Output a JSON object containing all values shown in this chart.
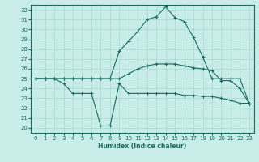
{
  "xlabel": "Humidex (Indice chaleur)",
  "ylabel": "",
  "xlim": [
    -0.5,
    23.5
  ],
  "ylim": [
    19.5,
    32.5
  ],
  "yticks": [
    20,
    21,
    22,
    23,
    24,
    25,
    26,
    27,
    28,
    29,
    30,
    31,
    32
  ],
  "xticks": [
    0,
    1,
    2,
    3,
    4,
    5,
    6,
    7,
    8,
    9,
    10,
    11,
    12,
    13,
    14,
    15,
    16,
    17,
    18,
    19,
    20,
    21,
    22,
    23
  ],
  "background_color": "#c8ece8",
  "grid_color": "#a8d8cc",
  "line_color": "#1a6b60",
  "curves": [
    {
      "x": [
        0,
        1,
        2,
        3,
        4,
        5,
        6,
        7,
        8,
        9,
        10,
        11,
        12,
        13,
        14,
        15,
        16,
        17,
        18,
        19,
        20,
        21,
        22,
        23
      ],
      "y": [
        25,
        25,
        25,
        25,
        25,
        25,
        25,
        25,
        25,
        27.8,
        28.8,
        29.8,
        31.0,
        31.3,
        32.3,
        31.2,
        30.8,
        29.2,
        27.2,
        25,
        25,
        25,
        25,
        22.5
      ]
    },
    {
      "x": [
        0,
        1,
        2,
        3,
        4,
        5,
        6,
        7,
        8,
        9,
        10,
        11,
        12,
        13,
        14,
        15,
        16,
        17,
        18,
        19,
        20,
        21,
        22,
        23
      ],
      "y": [
        25,
        25,
        25,
        25,
        25,
        25,
        25,
        25,
        25,
        25,
        25.5,
        26,
        26.3,
        26.5,
        26.5,
        26.5,
        26.3,
        26.1,
        26,
        25.8,
        24.8,
        24.8,
        24.0,
        22.5
      ]
    },
    {
      "x": [
        0,
        1,
        2,
        3,
        4,
        5,
        6,
        7,
        8,
        9,
        10,
        11,
        12,
        13,
        14,
        15,
        16,
        17,
        18,
        19,
        20,
        21,
        22,
        23
      ],
      "y": [
        25,
        25,
        25,
        24.5,
        23.5,
        23.5,
        23.5,
        20.2,
        20.2,
        24.5,
        23.5,
        23.5,
        23.5,
        23.5,
        23.5,
        23.5,
        23.3,
        23.3,
        23.2,
        23.2,
        23.0,
        22.8,
        22.5,
        22.5
      ]
    }
  ]
}
